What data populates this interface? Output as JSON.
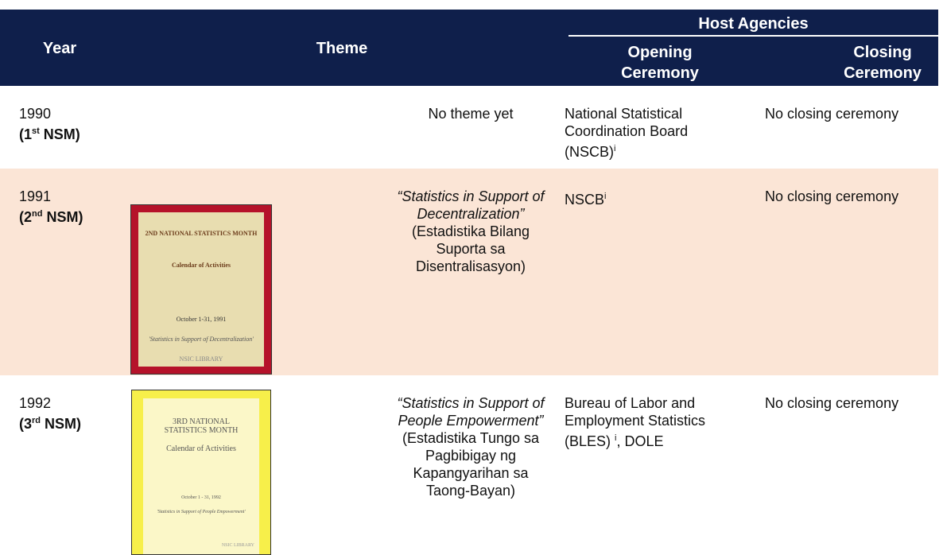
{
  "header": {
    "year": "Year",
    "theme": "Theme",
    "host_agencies": "Host Agencies",
    "opening": "Opening Ceremony",
    "closing": "Closing Ceremony"
  },
  "table": {
    "rows": [
      {
        "year": "1990",
        "nsm": {
          "prefix": "(1",
          "sup": "st",
          "suffix": " NSM)"
        },
        "theme": {
          "title": "No theme yet"
        },
        "opening": {
          "text": "National Statistical Coordination Board (NSCB)",
          "sup": "i"
        },
        "closing": "No closing ceremony"
      },
      {
        "year": "1991",
        "nsm": {
          "prefix": "(2",
          "sup": "nd",
          "suffix": " NSM)"
        },
        "cover": {
          "lines": [
            "2ND NATIONAL STATISTICS MONTH",
            "Calendar of Activities",
            "October 1-31, 1991",
            "'Statistics in Support of Decentralization'",
            "NSIC LIBRARY"
          ]
        },
        "theme": {
          "title": "“Statistics in Support of Decentralization”",
          "translation": "(Estadistika Bilang Suporta sa Disentralisasyon)"
        },
        "opening": {
          "text": "NSCB",
          "sup": "i"
        },
        "closing": "No closing ceremony"
      },
      {
        "year": "1992",
        "nsm": {
          "prefix": "(3",
          "sup": "rd",
          "suffix": " NSM)"
        },
        "cover": {
          "lines": [
            "3RD NATIONAL STATISTICS MONTH",
            "Calendar of Activities",
            "October 1 - 31, 1992",
            "'Statistics in Support of People Empowerment'",
            "NSIC LIBRARY"
          ]
        },
        "theme": {
          "title": "“Statistics in Support of People Empowerment”",
          "translation": "(Estadistika Tungo sa Pagbibigay ng Kapangyarihan sa Taong-Bayan)"
        },
        "opening": {
          "text": "Bureau of Labor and Employment Statistics (BLES) ",
          "sup": "i",
          "after": ", DOLE"
        },
        "closing": "No closing ceremony"
      }
    ]
  }
}
